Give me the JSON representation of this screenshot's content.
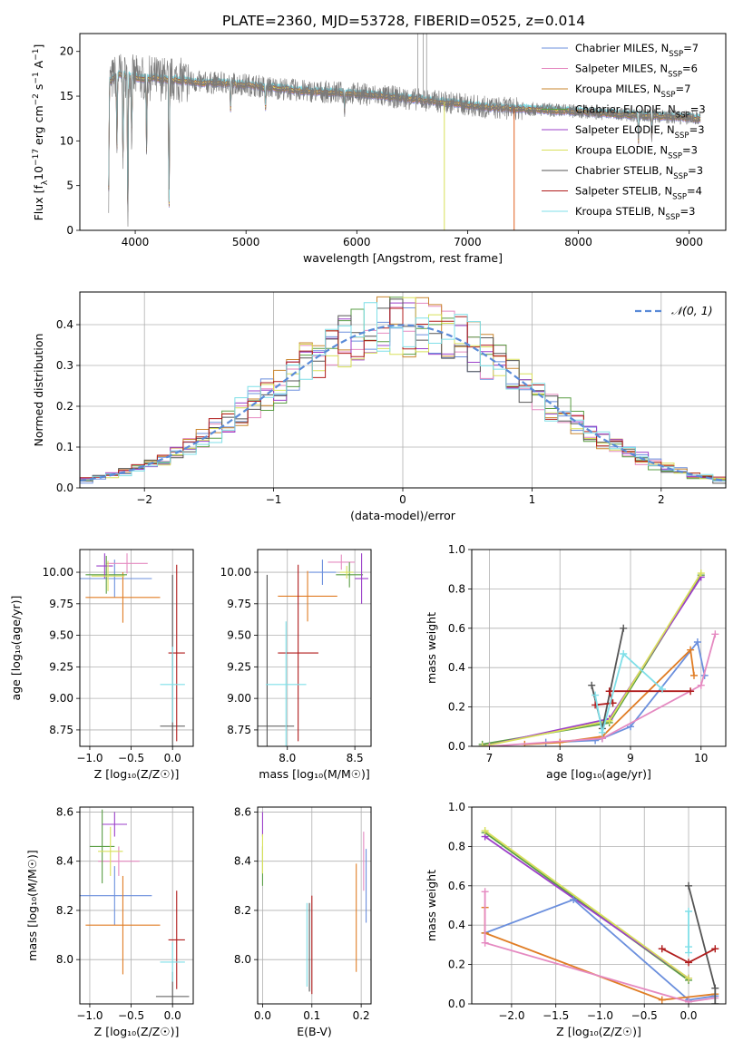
{
  "figure": {
    "title": "PLATE=2360, MJD=53728, FIBERID=0525, z=0.014",
    "legend_spectrum": [
      {
        "label": "Chabrier MILES, N",
        "sub": "SSP",
        "tail": "=7",
        "color": "#6b8fdd"
      },
      {
        "label": "Salpeter MILES, N",
        "sub": "SSP",
        "tail": "=6",
        "color": "#e58ac1"
      },
      {
        "label": "Kroupa MILES, N",
        "sub": "SSP",
        "tail": "=7",
        "color": "#c9852e"
      },
      {
        "label": "Chabrier ELODIE, N",
        "sub": "SSP",
        "tail": "=3",
        "color": "#5a9e44"
      },
      {
        "label": "Salpeter ELODIE, N",
        "sub": "SSP",
        "tail": "=3",
        "color": "#9b3fc9"
      },
      {
        "label": "Kroupa ELODIE, N",
        "sub": "SSP",
        "tail": "=3",
        "color": "#d8e05a"
      },
      {
        "label": "Chabrier STELIB, N",
        "sub": "SSP",
        "tail": "=3",
        "color": "#555555"
      },
      {
        "label": "Salpeter STELIB, N",
        "sub": "SSP",
        "tail": "=4",
        "color": "#b01c1c"
      },
      {
        "label": "Kroupa STELIB, N",
        "sub": "SSP",
        "tail": "=3",
        "color": "#7fdfe8"
      }
    ],
    "legend_hist": "𝒩(0, 1)"
  },
  "chart_data": [
    {
      "id": "spectrum",
      "type": "line",
      "xlabel": "wavelength [Angstrom, rest frame]",
      "ylabel_parts": [
        "Flux [f",
        "λ",
        "10",
        "−17",
        " erg cm",
        "−2",
        " s",
        "−1",
        " A",
        "−1",
        "]"
      ],
      "xlim": [
        3500,
        9330
      ],
      "ylim": [
        0,
        22
      ],
      "xticks": [
        4000,
        5000,
        6000,
        7000,
        8000,
        9000
      ],
      "yticks": [
        0,
        5,
        10,
        15,
        20
      ],
      "grid": false,
      "continuum": [
        [
          3760,
          16.5
        ],
        [
          3850,
          17.5
        ],
        [
          3950,
          17.2
        ],
        [
          4050,
          17.0
        ],
        [
          4200,
          17.0
        ],
        [
          4400,
          16.8
        ],
        [
          4600,
          16.5
        ],
        [
          4800,
          16.5
        ],
        [
          5000,
          16.3
        ],
        [
          5200,
          16.0
        ],
        [
          5500,
          15.6
        ],
        [
          6000,
          15.3
        ],
        [
          6500,
          14.7
        ],
        [
          6900,
          14.2
        ],
        [
          7200,
          13.7
        ],
        [
          7500,
          13.6
        ],
        [
          8000,
          13.3
        ],
        [
          8500,
          12.9
        ],
        [
          9000,
          12.6
        ],
        [
          9100,
          12.5
        ]
      ],
      "absorption_features": [
        {
          "x": 3760,
          "depth": 12.0
        },
        {
          "x": 3835,
          "depth": 8.0
        },
        {
          "x": 3890,
          "depth": 10.0
        },
        {
          "x": 3933,
          "depth": 17.0
        },
        {
          "x": 3968,
          "depth": 7.0
        },
        {
          "x": 4102,
          "depth": 8.0
        },
        {
          "x": 4305,
          "depth": 16.0
        },
        {
          "x": 4861,
          "depth": 3.0
        },
        {
          "x": 5175,
          "depth": 2.5
        },
        {
          "x": 5890,
          "depth": 2.0
        },
        {
          "x": 8542,
          "depth": 3.0
        },
        {
          "x": 8662,
          "depth": 2.5
        }
      ],
      "emission_spikes": [
        {
          "x": 6550,
          "top": 23.0
        },
        {
          "x": 6600,
          "top": 23.0
        },
        {
          "x": 6630,
          "top": 22.0
        }
      ],
      "dropouts": [
        {
          "x": 6790,
          "color": "#d8e05a"
        },
        {
          "x": 7420,
          "color": "#e06020"
        }
      ]
    },
    {
      "id": "residual-hist",
      "type": "area",
      "xlabel": "(data-model)/error",
      "ylabel": "Normed distribution",
      "xlim": [
        -2.5,
        2.5
      ],
      "ylim": [
        0,
        0.48
      ],
      "xticks": [
        -2,
        -1,
        0,
        1,
        2
      ],
      "xticklabels": [
        "−2",
        "−1",
        "0",
        "1",
        "2"
      ],
      "yticks": [
        0.0,
        0.1,
        0.2,
        0.3,
        0.4
      ],
      "yticklabels": [
        "0.0",
        "0.1",
        "0.2",
        "0.3",
        "0.4"
      ],
      "grid": true,
      "bin_width": 0.1,
      "model_curve": "normal(0,1)"
    },
    {
      "id": "age-vs-Z",
      "type": "scatter",
      "xlabel": "Z [log₁₀(Z/Z☉)]",
      "ylabel": "age  [log₁₀(age/yr)]",
      "xlim": [
        -1.12,
        0.25
      ],
      "ylim": [
        8.62,
        10.18
      ],
      "xticks": [
        -1.0,
        -0.5,
        0.0
      ],
      "xticklabels": [
        "−1.0",
        "−0.5",
        "0.0"
      ],
      "yticks": [
        8.75,
        9.0,
        9.25,
        9.5,
        9.75,
        10.0
      ],
      "yticklabels": [
        "8.75",
        "9.00",
        "9.25",
        "9.50",
        "9.75",
        "10.00"
      ],
      "grid": true,
      "points": [
        {
          "x": -0.7,
          "y": 9.95,
          "ex": 0.45,
          "ey": 0.15,
          "color": "#6b8fdd"
        },
        {
          "x": -0.55,
          "y": 10.07,
          "ex": 0.25,
          "ey": 0.08,
          "color": "#e58ac1"
        },
        {
          "x": -0.6,
          "y": 9.8,
          "ex": 0.45,
          "ey": 0.2,
          "color": "#e07d25"
        },
        {
          "x": -0.8,
          "y": 9.98,
          "ex": 0.25,
          "ey": 0.15,
          "color": "#5a9e44"
        },
        {
          "x": -0.82,
          "y": 10.05,
          "ex": 0.1,
          "ey": 0.1,
          "color": "#9b3fc9"
        },
        {
          "x": -0.78,
          "y": 9.97,
          "ex": 0.2,
          "ey": 0.12,
          "color": "#d8e05a"
        },
        {
          "x": 0.0,
          "y": 8.78,
          "ex": 0.15,
          "ey": 1.2,
          "color": "#555555"
        },
        {
          "x": 0.05,
          "y": 9.36,
          "ex": 0.1,
          "ey": 0.7,
          "color": "#b01c1c"
        },
        {
          "x": 0.0,
          "y": 9.11,
          "ex": 0.15,
          "ey": 0.3,
          "color": "#7fdfe8"
        }
      ]
    },
    {
      "id": "age-vs-mass",
      "type": "scatter",
      "xlabel": "mass [log₁₀(M/M☉)]",
      "ylabel": "",
      "xlim": [
        7.78,
        8.62
      ],
      "ylim": [
        8.62,
        10.18
      ],
      "xticks": [
        8.0,
        8.5
      ],
      "xticklabels": [
        "8.0",
        "8.5"
      ],
      "yticks": [
        8.75,
        9.0,
        9.25,
        9.5,
        9.75,
        10.0
      ],
      "yticklabels": [
        "8.75",
        "9.00",
        "9.25",
        "9.50",
        "9.75",
        "10.00"
      ],
      "grid": true,
      "points": [
        {
          "x": 8.26,
          "y": 10.0,
          "ex": 0.1,
          "ey": 0.1,
          "color": "#6b8fdd"
        },
        {
          "x": 8.4,
          "y": 10.08,
          "ex": 0.1,
          "ey": 0.06,
          "color": "#e58ac1"
        },
        {
          "x": 8.15,
          "y": 9.81,
          "ex": 0.22,
          "ey": 0.2,
          "color": "#e07d25"
        },
        {
          "x": 8.46,
          "y": 9.98,
          "ex": 0.1,
          "ey": 0.1,
          "color": "#5a9e44"
        },
        {
          "x": 8.55,
          "y": 9.95,
          "ex": 0.05,
          "ey": 0.2,
          "color": "#9b3fc9"
        },
        {
          "x": 8.44,
          "y": 10.0,
          "ex": 0.05,
          "ey": 0.05,
          "color": "#d8e05a"
        },
        {
          "x": 7.85,
          "y": 8.78,
          "ex": 0.2,
          "ey": 1.2,
          "color": "#555555"
        },
        {
          "x": 8.08,
          "y": 9.36,
          "ex": 0.15,
          "ey": 0.7,
          "color": "#b01c1c"
        },
        {
          "x": 7.99,
          "y": 9.11,
          "ex": 0.15,
          "ey": 0.5,
          "color": "#7fdfe8"
        }
      ]
    },
    {
      "id": "weight-vs-age",
      "type": "line",
      "xlabel": "age  [log₁₀(age/yr)]",
      "ylabel": "mass weight",
      "xlim": [
        6.75,
        10.35
      ],
      "ylim": [
        0,
        1.0
      ],
      "xticks": [
        7,
        8,
        9,
        10
      ],
      "xticklabels": [
        "7",
        "8",
        "9",
        "10"
      ],
      "yticks": [
        0.0,
        0.2,
        0.4,
        0.6,
        0.8,
        1.0
      ],
      "yticklabels": [
        "0.0",
        "0.2",
        "0.4",
        "0.6",
        "0.8",
        "1.0"
      ],
      "grid": true,
      "series": [
        {
          "color": "#5a9e44",
          "points": [
            [
              6.9,
              0.01
            ],
            [
              8.7,
              0.12
            ],
            [
              10.0,
              0.87
            ]
          ]
        },
        {
          "color": "#9b3fc9",
          "points": [
            [
              6.9,
              0.0
            ],
            [
              8.7,
              0.14
            ],
            [
              10.0,
              0.86
            ]
          ]
        },
        {
          "color": "#d8e05a",
          "points": [
            [
              6.9,
              0.0
            ],
            [
              8.7,
              0.13
            ],
            [
              10.0,
              0.88
            ]
          ]
        },
        {
          "color": "#6b8fdd",
          "points": [
            [
              7.8,
              0.02
            ],
            [
              8.5,
              0.03
            ],
            [
              8.6,
              0.04
            ],
            [
              9.0,
              0.1
            ],
            [
              9.95,
              0.53
            ],
            [
              10.05,
              0.36
            ]
          ]
        },
        {
          "color": "#e07d25",
          "points": [
            [
              7.5,
              0.01
            ],
            [
              8.0,
              0.02
            ],
            [
              8.6,
              0.05
            ],
            [
              9.85,
              0.49
            ],
            [
              9.9,
              0.36
            ]
          ]
        },
        {
          "color": "#e58ac1",
          "points": [
            [
              7.0,
              0.0
            ],
            [
              8.6,
              0.04
            ],
            [
              10.0,
              0.31
            ],
            [
              10.2,
              0.57
            ]
          ]
        },
        {
          "color": "#555555",
          "points": [
            [
              8.45,
              0.31
            ],
            [
              8.6,
              0.09
            ],
            [
              8.9,
              0.6
            ]
          ]
        },
        {
          "color": "#b01c1c",
          "points": [
            [
              8.5,
              0.21
            ],
            [
              8.75,
              0.22
            ],
            [
              8.7,
              0.28
            ],
            [
              9.85,
              0.28
            ]
          ]
        },
        {
          "color": "#7fdfe8",
          "points": [
            [
              8.5,
              0.26
            ],
            [
              8.6,
              0.07
            ],
            [
              8.9,
              0.47
            ],
            [
              9.45,
              0.29
            ]
          ]
        }
      ]
    },
    {
      "id": "mass-vs-Z",
      "type": "scatter",
      "xlabel": "Z [log₁₀(Z/Z☉)]",
      "ylabel": "mass [log₁₀(M/M☉)]",
      "xlim": [
        -1.12,
        0.25
      ],
      "ylim": [
        7.82,
        8.62
      ],
      "xticks": [
        -1.0,
        -0.5,
        0.0
      ],
      "xticklabels": [
        "−1.0",
        "−0.5",
        "0.0"
      ],
      "yticks": [
        8.0,
        8.2,
        8.4,
        8.6
      ],
      "yticklabels": [
        "8.0",
        "8.2",
        "8.4",
        "8.6"
      ],
      "grid": true,
      "points": [
        {
          "x": -0.7,
          "y": 8.26,
          "ex": 0.45,
          "ey": 0.12,
          "color": "#6b8fdd"
        },
        {
          "x": -0.65,
          "y": 8.4,
          "ex": 0.25,
          "ey": 0.06,
          "color": "#e58ac1"
        },
        {
          "x": -0.6,
          "y": 8.14,
          "ex": 0.45,
          "ey": 0.2,
          "color": "#e07d25"
        },
        {
          "x": -0.85,
          "y": 8.46,
          "ex": 0.15,
          "ey": 0.15,
          "color": "#5a9e44"
        },
        {
          "x": -0.7,
          "y": 8.55,
          "ex": 0.15,
          "ey": 0.05,
          "color": "#9b3fc9"
        },
        {
          "x": -0.75,
          "y": 8.44,
          "ex": 0.15,
          "ey": 0.1,
          "color": "#d8e05a"
        },
        {
          "x": 0.0,
          "y": 7.85,
          "ex": 0.2,
          "ey": 0.1,
          "color": "#555555"
        },
        {
          "x": 0.05,
          "y": 8.08,
          "ex": 0.1,
          "ey": 0.2,
          "color": "#b01c1c"
        },
        {
          "x": 0.0,
          "y": 7.99,
          "ex": 0.15,
          "ey": 0.08,
          "color": "#7fdfe8"
        }
      ]
    },
    {
      "id": "mass-vs-ebv",
      "type": "scatter",
      "xlabel": "E(B-V)",
      "ylabel": "",
      "xlim": [
        -0.01,
        0.22
      ],
      "ylim": [
        7.82,
        8.62
      ],
      "xticks": [
        0.0,
        0.1,
        0.2
      ],
      "xticklabels": [
        "0.0",
        "0.1",
        "0.2"
      ],
      "yticks": [
        8.0,
        8.2,
        8.4,
        8.6
      ],
      "yticklabels": [
        "8.0",
        "8.2",
        "8.4",
        "8.6"
      ],
      "grid": true,
      "points": [
        {
          "x": 0.21,
          "y": 8.3,
          "ex": 0,
          "ey": 0.15,
          "color": "#6b8fdd"
        },
        {
          "x": 0.205,
          "y": 8.4,
          "ex": 0,
          "ey": 0.12,
          "color": "#e58ac1"
        },
        {
          "x": 0.19,
          "y": 8.17,
          "ex": 0,
          "ey": 0.22,
          "color": "#e07d25"
        },
        {
          "x": 0.0,
          "y": 8.38,
          "ex": 0,
          "ey": 0.08,
          "color": "#5a9e44"
        },
        {
          "x": 0.0,
          "y": 8.55,
          "ex": 0,
          "ey": 0.05,
          "color": "#9b3fc9"
        },
        {
          "x": 0.0,
          "y": 8.43,
          "ex": 0,
          "ey": 0.08,
          "color": "#d8e05a"
        },
        {
          "x": 0.095,
          "y": 8.05,
          "ex": 0,
          "ey": 0.18,
          "color": "#555555"
        },
        {
          "x": 0.1,
          "y": 8.06,
          "ex": 0,
          "ey": 0.2,
          "color": "#b01c1c"
        },
        {
          "x": 0.09,
          "y": 8.06,
          "ex": 0,
          "ey": 0.17,
          "color": "#7fdfe8"
        }
      ]
    },
    {
      "id": "weight-vs-Z",
      "type": "line",
      "xlabel": "Z [log₁₀(Z/Z☉)]",
      "ylabel": "mass weight",
      "xlim": [
        -2.45,
        0.42
      ],
      "ylim": [
        0,
        1.0
      ],
      "xticks": [
        -2.0,
        -1.5,
        -1.0,
        -0.5,
        0.0
      ],
      "xticklabels": [
        "−2.0",
        "−1.5",
        "−1.0",
        "−0.5",
        "0.0"
      ],
      "yticks": [
        0.0,
        0.2,
        0.4,
        0.6,
        0.8,
        1.0
      ],
      "yticklabels": [
        "0.0",
        "0.2",
        "0.4",
        "0.6",
        "0.8",
        "1.0"
      ],
      "grid": true,
      "series": [
        {
          "color": "#5a9e44",
          "points": [
            [
              -2.3,
              0.87
            ],
            [
              0.0,
              0.12
            ]
          ]
        },
        {
          "color": "#9b3fc9",
          "points": [
            [
              -2.3,
              0.85
            ],
            [
              0.0,
              0.13
            ]
          ]
        },
        {
          "color": "#d8e05a",
          "points": [
            [
              -2.3,
              0.88
            ],
            [
              0.0,
              0.13
            ]
          ]
        },
        {
          "color": "#6b8fdd",
          "points": [
            [
              -2.3,
              0.36
            ],
            [
              -1.3,
              0.53
            ],
            [
              0.0,
              0.02
            ],
            [
              0.3,
              0.04
            ]
          ]
        },
        {
          "color": "#e07d25",
          "points": [
            [
              -2.3,
              0.49
            ],
            [
              -2.3,
              0.36
            ],
            [
              -0.3,
              0.02
            ],
            [
              0.3,
              0.05
            ]
          ]
        },
        {
          "color": "#e58ac1",
          "points": [
            [
              -2.3,
              0.57
            ],
            [
              -2.3,
              0.31
            ],
            [
              0.0,
              0.01
            ],
            [
              0.3,
              0.03
            ]
          ]
        },
        {
          "color": "#555555",
          "points": [
            [
              0.0,
              0.6
            ],
            [
              0.3,
              0.08
            ],
            [
              0.3,
              0.0
            ]
          ]
        },
        {
          "color": "#b01c1c",
          "points": [
            [
              -0.3,
              0.28
            ],
            [
              0.0,
              0.21
            ],
            [
              0.3,
              0.28
            ]
          ]
        },
        {
          "color": "#7fdfe8",
          "points": [
            [
              0.0,
              0.47
            ],
            [
              0.0,
              0.29
            ],
            [
              0.0,
              0.26
            ]
          ]
        }
      ]
    }
  ]
}
